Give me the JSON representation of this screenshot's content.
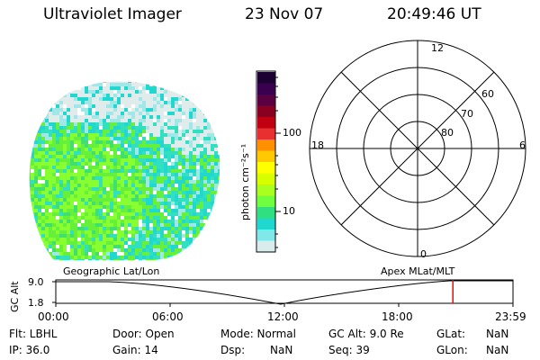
{
  "header": {
    "instrument": "Ultraviolet Imager",
    "date": "23 Nov 07",
    "time": "20:49:46 UT"
  },
  "colorbar": {
    "label": "photon cm⁻²s⁻¹",
    "ticks": [
      "100",
      "10"
    ],
    "colors": [
      "#1a0033",
      "#3a0050",
      "#5a0040",
      "#8a0020",
      "#c00010",
      "#e83030",
      "#ff9000",
      "#ffc800",
      "#ffff00",
      "#d8ff00",
      "#a8ff20",
      "#70ff40",
      "#30e080",
      "#20d8d0",
      "#80e8e8",
      "#d8ecec"
    ]
  },
  "polar_plot": {
    "clock_labels": [
      "12",
      "18",
      "6",
      "0"
    ],
    "lat_labels": [
      "60",
      "70",
      "80"
    ]
  },
  "image_panel": {
    "palette": [
      "#88ff30",
      "#66f03a",
      "#40e070",
      "#30e0c0",
      "#20d8d0",
      "#a0e8e8",
      "#e0ecec"
    ]
  },
  "timeline": {
    "left_label": "Geographic Lat/Lon",
    "right_label": "Apex MLat/MLT",
    "axis_title": "GC Alt",
    "y_ticks": [
      "9.0",
      "1.8"
    ],
    "x_ticks": [
      "00:00",
      "06:00",
      "12:00",
      "18:00",
      "23:59"
    ],
    "marker_time_hours": 20.83,
    "curve_color": "#000000",
    "marker_color": "#ff0000"
  },
  "info": {
    "flt": "Flt: LBHL",
    "ip": "IP: 36.0",
    "door": "Door: Open",
    "gain": "Gain: 14",
    "mode": "Mode: Normal",
    "dsp": "Dsp:",
    "dsp_value": "NaN",
    "gc_alt": "GC Alt: 9.0 Re",
    "seq": "Seq: 39",
    "glat": "GLat:",
    "glat_value": "NaN",
    "glon": "GLon:",
    "glon_value": "NaN"
  }
}
